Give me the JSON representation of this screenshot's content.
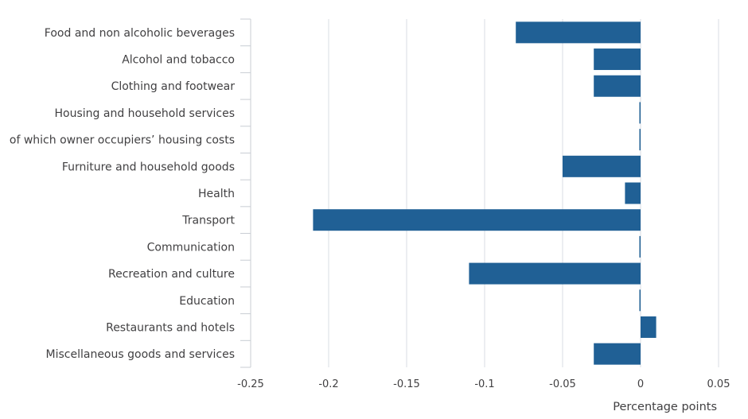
{
  "chart_data": {
    "type": "bar",
    "orientation": "horizontal",
    "title": "",
    "xlabel": "Percentage points",
    "ylabel": "",
    "xlim": [
      -0.25,
      0.05
    ],
    "xticks": [
      -0.25,
      -0.2,
      -0.15,
      -0.1,
      -0.05,
      0,
      0.05
    ],
    "xtick_labels": [
      "-0.25",
      "-0.2",
      "-0.15",
      "-0.1",
      "-0.05",
      "0",
      "0.05"
    ],
    "grid": "vertical",
    "legend": "none",
    "color": "#206095",
    "categories": [
      "Food and non alcoholic beverages",
      "Alcohol and tobacco",
      "Clothing and footwear",
      "Housing and household services",
      "of which owner occupiers’ housing costs",
      "Furniture and household goods",
      "Health",
      "Transport",
      "Communication",
      "Recreation and culture",
      "Education",
      "Restaurants and hotels",
      "Miscellaneous goods and services"
    ],
    "values": [
      -0.08,
      -0.03,
      -0.03,
      0,
      0,
      -0.05,
      -0.01,
      -0.21,
      0,
      -0.11,
      0,
      0.01,
      -0.03
    ]
  }
}
